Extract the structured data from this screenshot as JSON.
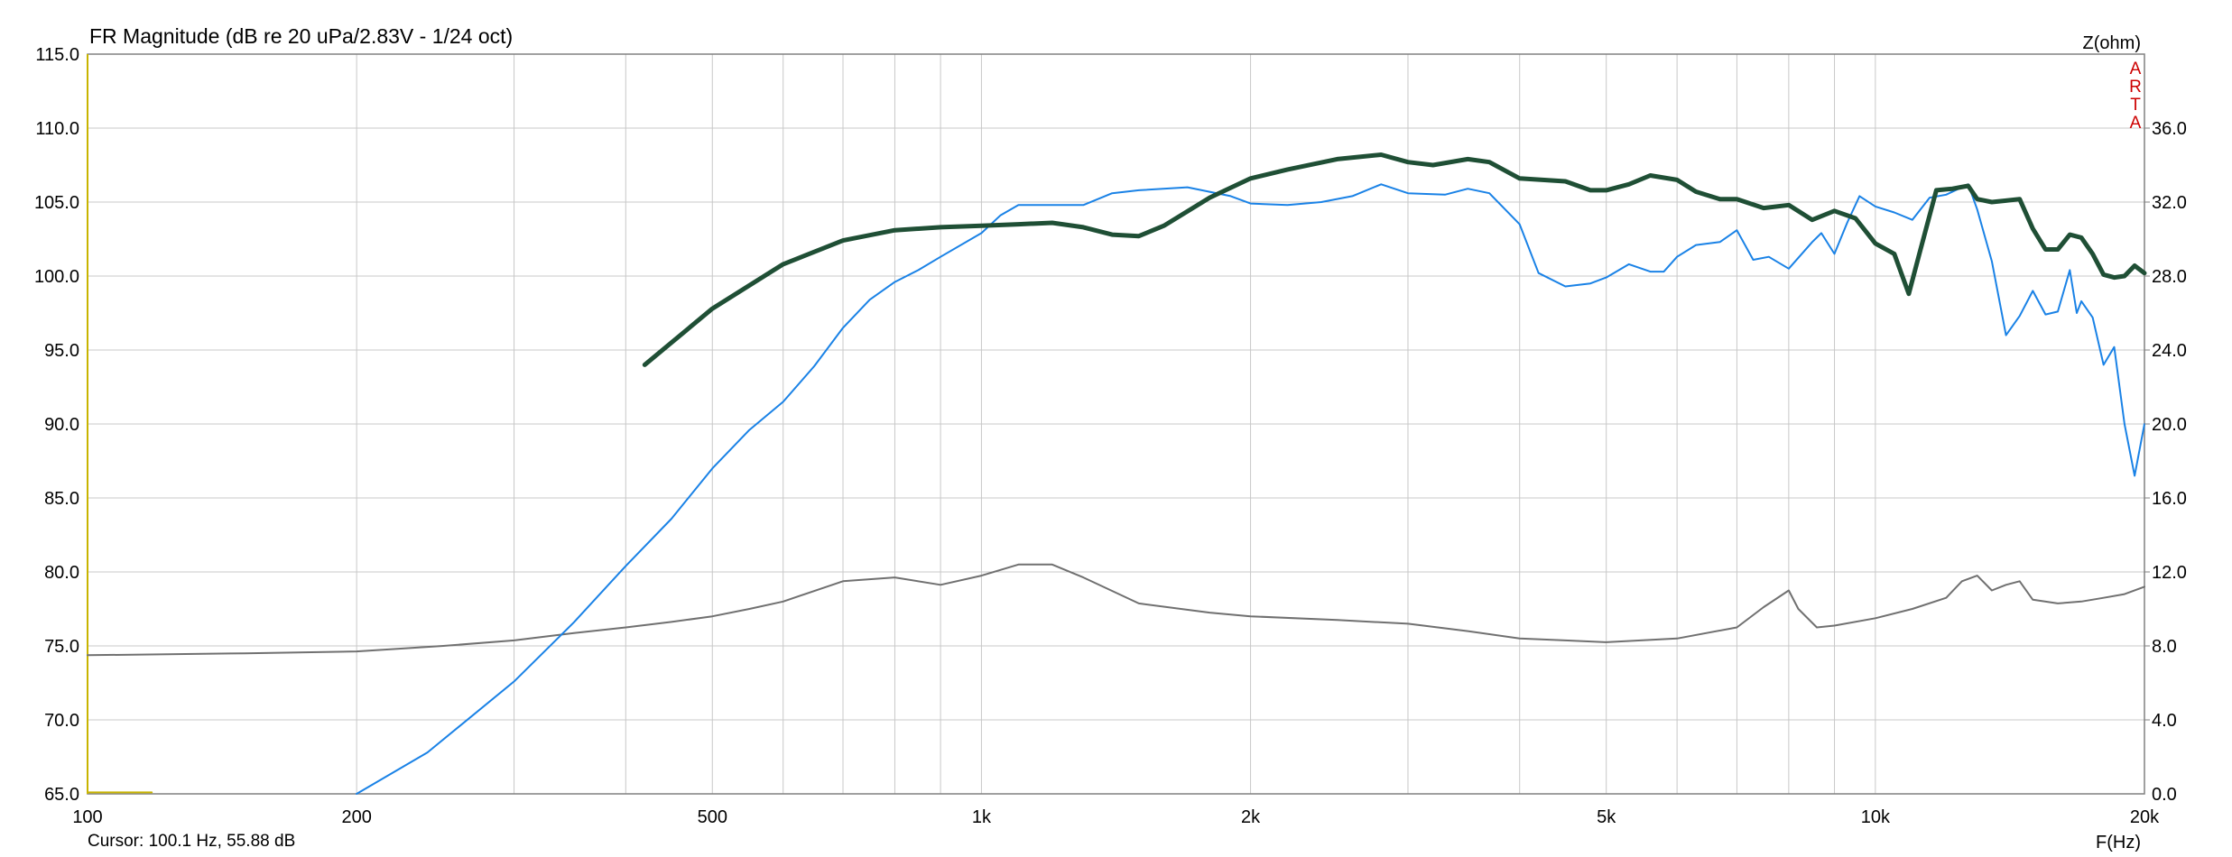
{
  "chart_data": {
    "type": "line",
    "title": "FR Magnitude (dB re 20 uPa/2.83V - 1/24 oct)",
    "xlabel": "F(Hz)",
    "ylabel_right": "Z(ohm)",
    "x_scale": "log",
    "xlim": [
      100,
      20000
    ],
    "ylim": [
      65,
      115
    ],
    "y2lim": [
      0,
      40
    ],
    "grid": true,
    "xtick_labels": [
      {
        "value": 100,
        "label": "100"
      },
      {
        "value": 200,
        "label": "200"
      },
      {
        "value": 500,
        "label": "500"
      },
      {
        "value": 1000,
        "label": "1k"
      },
      {
        "value": 2000,
        "label": "2k"
      },
      {
        "value": 5000,
        "label": "5k"
      },
      {
        "value": 10000,
        "label": "10k"
      },
      {
        "value": 20000,
        "label": "20k"
      }
    ],
    "ytick_labels": [
      "115.0",
      "110.0",
      "105.0",
      "100.0",
      "95.0",
      "90.0",
      "85.0",
      "80.0",
      "75.0",
      "70.0",
      "65.0"
    ],
    "y2tick_labels": [
      "36.0",
      "32.0",
      "28.0",
      "24.0",
      "20.0",
      "16.0",
      "12.0",
      "8.0",
      "4.0",
      "0.0"
    ],
    "cursor_text": "Cursor: 100.1 Hz, 55.88 dB",
    "brand_letters": [
      "A",
      "R",
      "T",
      "A"
    ],
    "series": [
      {
        "color": "#1f4f35",
        "axis": "left",
        "points": [
          [
            420,
            94
          ],
          [
            500,
            97.8
          ],
          [
            600,
            100.8
          ],
          [
            700,
            102.4
          ],
          [
            800,
            103.1
          ],
          [
            900,
            103.3
          ],
          [
            1000,
            103.4
          ],
          [
            1100,
            103.5
          ],
          [
            1200,
            103.6
          ],
          [
            1300,
            103.3
          ],
          [
            1400,
            102.8
          ],
          [
            1500,
            102.7
          ],
          [
            1600,
            103.4
          ],
          [
            1800,
            105.3
          ],
          [
            2000,
            106.6
          ],
          [
            2200,
            107.2
          ],
          [
            2500,
            107.9
          ],
          [
            2800,
            108.2
          ],
          [
            3000,
            107.7
          ],
          [
            3200,
            107.5
          ],
          [
            3500,
            107.9
          ],
          [
            3700,
            107.7
          ],
          [
            4000,
            106.6
          ],
          [
            4500,
            106.4
          ],
          [
            4800,
            105.8
          ],
          [
            5000,
            105.8
          ],
          [
            5300,
            106.2
          ],
          [
            5600,
            106.8
          ],
          [
            6000,
            106.5
          ],
          [
            6300,
            105.7
          ],
          [
            6700,
            105.2
          ],
          [
            7000,
            105.2
          ],
          [
            7500,
            104.6
          ],
          [
            8000,
            104.8
          ],
          [
            8500,
            103.8
          ],
          [
            9000,
            104.4
          ],
          [
            9500,
            103.9
          ],
          [
            10000,
            102.2
          ],
          [
            10500,
            101.5
          ],
          [
            10900,
            98.8
          ],
          [
            11200,
            101.5
          ],
          [
            11700,
            105.8
          ],
          [
            12200,
            105.9
          ],
          [
            12700,
            106.1
          ],
          [
            13000,
            105.2
          ],
          [
            13500,
            105
          ],
          [
            14000,
            105.1
          ],
          [
            14500,
            105.2
          ],
          [
            15000,
            103.2
          ],
          [
            15500,
            101.8
          ],
          [
            16000,
            101.8
          ],
          [
            16500,
            102.8
          ],
          [
            17000,
            102.6
          ],
          [
            17500,
            101.5
          ],
          [
            18000,
            100.1
          ],
          [
            18500,
            99.9
          ],
          [
            19000,
            100
          ],
          [
            19500,
            100.7
          ],
          [
            20000,
            100.2
          ]
        ]
      },
      {
        "color": "#1a82e6",
        "axis": "left",
        "points": [
          [
            200,
            65
          ],
          [
            240,
            67.8
          ],
          [
            300,
            72.6
          ],
          [
            350,
            76.6
          ],
          [
            400,
            80.4
          ],
          [
            450,
            83.6
          ],
          [
            500,
            87
          ],
          [
            550,
            89.6
          ],
          [
            600,
            91.5
          ],
          [
            650,
            93.9
          ],
          [
            700,
            96.5
          ],
          [
            750,
            98.4
          ],
          [
            800,
            99.6
          ],
          [
            850,
            100.4
          ],
          [
            900,
            101.3
          ],
          [
            1000,
            102.9
          ],
          [
            1050,
            104.1
          ],
          [
            1100,
            104.8
          ],
          [
            1200,
            104.8
          ],
          [
            1300,
            104.8
          ],
          [
            1400,
            105.6
          ],
          [
            1500,
            105.8
          ],
          [
            1700,
            106
          ],
          [
            1900,
            105.4
          ],
          [
            2000,
            104.9
          ],
          [
            2200,
            104.8
          ],
          [
            2400,
            105
          ],
          [
            2600,
            105.4
          ],
          [
            2800,
            106.2
          ],
          [
            3000,
            105.6
          ],
          [
            3300,
            105.5
          ],
          [
            3500,
            105.9
          ],
          [
            3700,
            105.6
          ],
          [
            4000,
            103.5
          ],
          [
            4200,
            100.2
          ],
          [
            4500,
            99.3
          ],
          [
            4800,
            99.5
          ],
          [
            5000,
            99.9
          ],
          [
            5300,
            100.8
          ],
          [
            5600,
            100.3
          ],
          [
            5800,
            100.3
          ],
          [
            6000,
            101.3
          ],
          [
            6300,
            102.1
          ],
          [
            6700,
            102.3
          ],
          [
            7000,
            103.1
          ],
          [
            7300,
            101.1
          ],
          [
            7600,
            101.3
          ],
          [
            8000,
            100.5
          ],
          [
            8500,
            102.3
          ],
          [
            8700,
            102.9
          ],
          [
            9000,
            101.5
          ],
          [
            9300,
            103.6
          ],
          [
            9600,
            105.4
          ],
          [
            10000,
            104.7
          ],
          [
            10500,
            104.3
          ],
          [
            11000,
            103.8
          ],
          [
            11500,
            105.3
          ],
          [
            12000,
            105.5
          ],
          [
            12700,
            106.2
          ],
          [
            13000,
            104.5
          ],
          [
            13500,
            101
          ],
          [
            14000,
            96
          ],
          [
            14500,
            97.3
          ],
          [
            15000,
            99
          ],
          [
            15500,
            97.4
          ],
          [
            16000,
            97.6
          ],
          [
            16500,
            100.4
          ],
          [
            16800,
            97.5
          ],
          [
            17000,
            98.3
          ],
          [
            17500,
            97.2
          ],
          [
            18000,
            94
          ],
          [
            18500,
            95.2
          ],
          [
            19000,
            90
          ],
          [
            19500,
            86.5
          ],
          [
            20000,
            90
          ]
        ]
      },
      {
        "color": "#707070",
        "axis": "right",
        "points": [
          [
            100,
            7.5
          ],
          [
            150,
            7.6
          ],
          [
            200,
            7.7
          ],
          [
            250,
            8
          ],
          [
            300,
            8.3
          ],
          [
            350,
            8.7
          ],
          [
            400,
            9
          ],
          [
            450,
            9.3
          ],
          [
            500,
            9.6
          ],
          [
            550,
            10
          ],
          [
            600,
            10.4
          ],
          [
            700,
            11.5
          ],
          [
            800,
            11.7
          ],
          [
            900,
            11.3
          ],
          [
            1000,
            11.8
          ],
          [
            1100,
            12.4
          ],
          [
            1200,
            12.4
          ],
          [
            1300,
            11.7
          ],
          [
            1500,
            10.3
          ],
          [
            1800,
            9.8
          ],
          [
            2000,
            9.6
          ],
          [
            2500,
            9.4
          ],
          [
            3000,
            9.2
          ],
          [
            3500,
            8.8
          ],
          [
            4000,
            8.4
          ],
          [
            4500,
            8.3
          ],
          [
            5000,
            8.2
          ],
          [
            6000,
            8.4
          ],
          [
            7000,
            9
          ],
          [
            7500,
            10.1
          ],
          [
            8000,
            11
          ],
          [
            8200,
            10
          ],
          [
            8600,
            9
          ],
          [
            9000,
            9.1
          ],
          [
            10000,
            9.5
          ],
          [
            11000,
            10
          ],
          [
            12000,
            10.6
          ],
          [
            12500,
            11.5
          ],
          [
            13000,
            11.8
          ],
          [
            13500,
            11
          ],
          [
            14000,
            11.3
          ],
          [
            14500,
            11.5
          ],
          [
            15000,
            10.5
          ],
          [
            16000,
            10.3
          ],
          [
            17000,
            10.4
          ],
          [
            18000,
            10.6
          ],
          [
            19000,
            10.8
          ],
          [
            20000,
            11.2
          ]
        ]
      },
      {
        "color": "#c8b400",
        "axis": "left",
        "points": [
          [
            100,
            65.1
          ],
          [
            118,
            65.1
          ]
        ]
      }
    ]
  }
}
